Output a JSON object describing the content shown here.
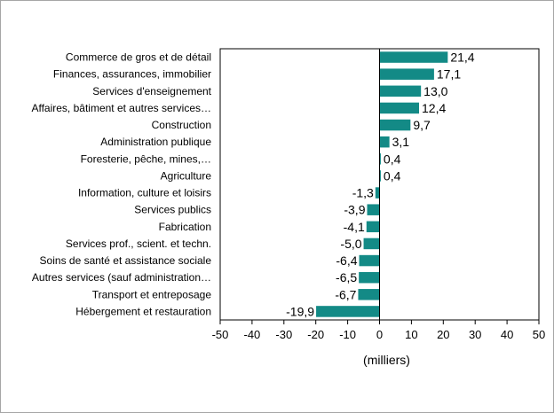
{
  "chart_data": {
    "type": "bar",
    "orientation": "horizontal",
    "categories": [
      "Commerce de gros et de détail",
      "Finances, assurances, immobilier",
      "Services d'enseignement",
      "Affaires, bâtiment et autres services…",
      "Construction",
      "Administration publique",
      "Foresterie, pêche, mines,…",
      "Agriculture",
      "Information, culture et loisirs",
      "Services publics",
      "Fabrication",
      "Services prof., scient. et techn.",
      "Soins de santé et assistance sociale",
      "Autres services (sauf administration…",
      "Transport et entreposage",
      "Hébergement et restauration"
    ],
    "values": [
      21.4,
      17.1,
      13.0,
      12.4,
      9.7,
      3.1,
      0.4,
      0.4,
      -1.3,
      -3.9,
      -4.1,
      -5.0,
      -6.4,
      -6.5,
      -6.7,
      -19.9
    ],
    "value_labels": [
      "21,4",
      "17,1",
      "13,0",
      "12,4",
      "9,7",
      "3,1",
      "0,4",
      "0,4",
      "-1,3",
      "-3,9",
      "-4,1",
      "-5,0",
      "-6,4",
      "-6,5",
      "-6,7",
      "-19,9"
    ],
    "xlim": [
      -50,
      50
    ],
    "xticks": [
      -50,
      -40,
      -30,
      -20,
      -10,
      0,
      10,
      20,
      30,
      40,
      50
    ],
    "xtick_labels": [
      "-50",
      "-40",
      "-30",
      "-20",
      "-10",
      "0",
      "10",
      "20",
      "30",
      "40",
      "50"
    ],
    "xlabel": "(milliers)",
    "title": "",
    "grid": false,
    "bar_color": "#138a86"
  }
}
